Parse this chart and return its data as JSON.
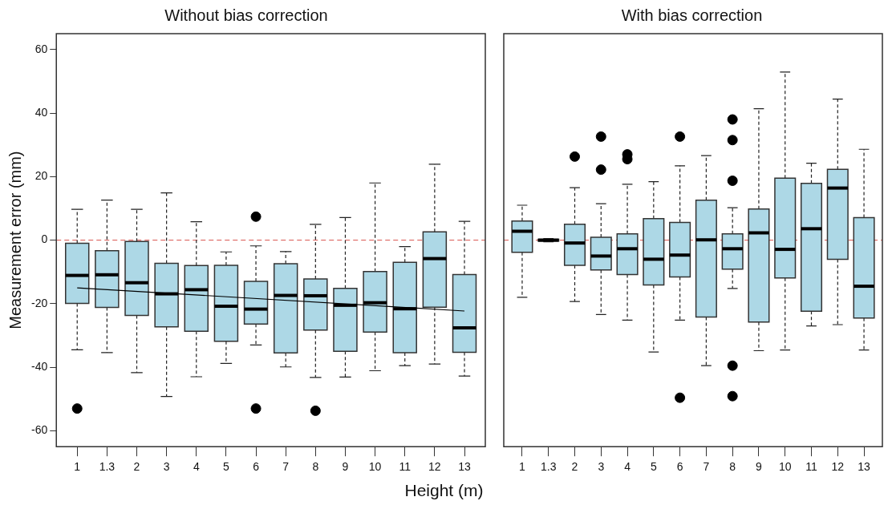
{
  "chart_data": [
    {
      "type": "box",
      "title": "Without bias correction",
      "xlabel": "Height (m)",
      "ylabel": "Measurement error (mm)",
      "color": "#add8e6",
      "categories": [
        "1",
        "1.3",
        "2",
        "3",
        "4",
        "5",
        "6",
        "7",
        "8",
        "9",
        "10",
        "11",
        "12",
        "13"
      ],
      "boxes": [
        {
          "low": -34.5,
          "q1": -19.9,
          "median": -11.1,
          "q3": -1,
          "high": 9.7,
          "outliers": [
            -53
          ]
        },
        {
          "low": -35.4,
          "q1": -21.2,
          "median": -10.9,
          "q3": -3.3,
          "high": 12.6
        },
        {
          "low": -41.7,
          "q1": -23.7,
          "median": -13.4,
          "q3": -0.4,
          "high": 9.7
        },
        {
          "low": -49.2,
          "q1": -27.3,
          "median": -16.9,
          "q3": -7.3,
          "high": 14.9
        },
        {
          "low": -43,
          "q1": -28.7,
          "median": -15.6,
          "q3": -8,
          "high": 5.8
        },
        {
          "low": -38.8,
          "q1": -31.8,
          "median": -20.8,
          "q3": -7.9,
          "high": -3.7
        },
        {
          "low": -33,
          "q1": -26.4,
          "median": -21.7,
          "q3": -13,
          "high": -1.8,
          "outliers": [
            7.4,
            -53
          ]
        },
        {
          "low": -39.9,
          "q1": -35.5,
          "median": -17.4,
          "q3": -7.4,
          "high": -3.6
        },
        {
          "low": -43.2,
          "q1": -28.3,
          "median": -17.5,
          "q3": -12.2,
          "high": 5,
          "outliers": [
            -53.7
          ]
        },
        {
          "low": -43.1,
          "q1": -35,
          "median": -20.5,
          "q3": -15.2,
          "high": 7.1
        },
        {
          "low": -41.1,
          "q1": -28.9,
          "median": -19.7,
          "q3": -9.9,
          "high": 18
        },
        {
          "low": -39.5,
          "q1": -35.4,
          "median": -21.6,
          "q3": -7,
          "high": -2
        },
        {
          "low": -39,
          "q1": -21.1,
          "median": -5.8,
          "q3": 2.6,
          "high": 23.9
        },
        {
          "low": -42.8,
          "q1": -35.3,
          "median": -27.6,
          "q3": -10.8,
          "high": 5.9
        }
      ],
      "series": [
        {
          "type": "line",
          "x": [
            "1",
            "13"
          ],
          "values": [
            -15,
            -22.3
          ],
          "color": "#000000"
        }
      ],
      "ref_lines": [
        {
          "axis": "y",
          "value": 0,
          "color": "#d9534f",
          "line_style": "dashed"
        }
      ],
      "ylim": [
        -65,
        65
      ],
      "yticks": [
        -60,
        -40,
        -20,
        0,
        20,
        40,
        60
      ]
    },
    {
      "type": "box",
      "title": "With bias correction",
      "color": "#add8e6",
      "categories": [
        "1",
        "1.3",
        "2",
        "3",
        "4",
        "5",
        "6",
        "7",
        "8",
        "9",
        "10",
        "11",
        "12",
        "13"
      ],
      "boxes": [
        {
          "low": -18,
          "q1": -3.8,
          "median": 2.8,
          "q3": 6,
          "high": 11
        },
        {
          "low": -0.5,
          "q1": -0.3,
          "median": 0,
          "q3": 0.3,
          "high": 0.5
        },
        {
          "low": -19.3,
          "q1": -7.9,
          "median": -0.9,
          "q3": 5,
          "high": 16.5,
          "outliers": [
            26.3
          ]
        },
        {
          "low": -23.4,
          "q1": -9.4,
          "median": -5,
          "q3": 0.9,
          "high": 11.5,
          "outliers": [
            32.6,
            22.2
          ]
        },
        {
          "low": -25.2,
          "q1": -10.8,
          "median": -2.7,
          "q3": 2,
          "high": 17.6,
          "outliers": [
            27,
            25.5
          ]
        },
        {
          "low": -35.2,
          "q1": -14.1,
          "median": -6,
          "q3": 6.8,
          "high": 18.4
        },
        {
          "low": -25.2,
          "q1": -11.6,
          "median": -4.7,
          "q3": 5.6,
          "high": 23.4,
          "outliers": [
            32.6,
            -49.6
          ]
        },
        {
          "low": -39.5,
          "q1": -24.2,
          "median": 0.1,
          "q3": 12.6,
          "high": 26.6
        },
        {
          "low": -15.2,
          "q1": -9.1,
          "median": -2.7,
          "q3": 2,
          "high": 10.2,
          "outliers": [
            38,
            31.5,
            18.7,
            -39.5,
            -49.1
          ]
        },
        {
          "low": -34.8,
          "q1": -25.8,
          "median": 2.3,
          "q3": 9.8,
          "high": 41.4
        },
        {
          "low": -34.6,
          "q1": -11.9,
          "median": -2.9,
          "q3": 19.5,
          "high": 52.9
        },
        {
          "low": -27,
          "q1": -22.4,
          "median": 3.6,
          "q3": 17.9,
          "high": 24.2
        },
        {
          "low": -26.6,
          "q1": -6,
          "median": 16.4,
          "q3": 22.3,
          "high": 44.4
        },
        {
          "low": -34.6,
          "q1": -24.5,
          "median": -14.5,
          "q3": 7.1,
          "high": 28.6
        }
      ],
      "ref_lines": [
        {
          "axis": "y",
          "value": 0,
          "color": "#d9534f",
          "line_style": "dashed"
        }
      ],
      "ylim": [
        -65,
        65
      ],
      "yticks": [
        -60,
        -40,
        -20,
        0,
        20,
        40,
        60
      ],
      "tick_labels": "x"
    }
  ]
}
